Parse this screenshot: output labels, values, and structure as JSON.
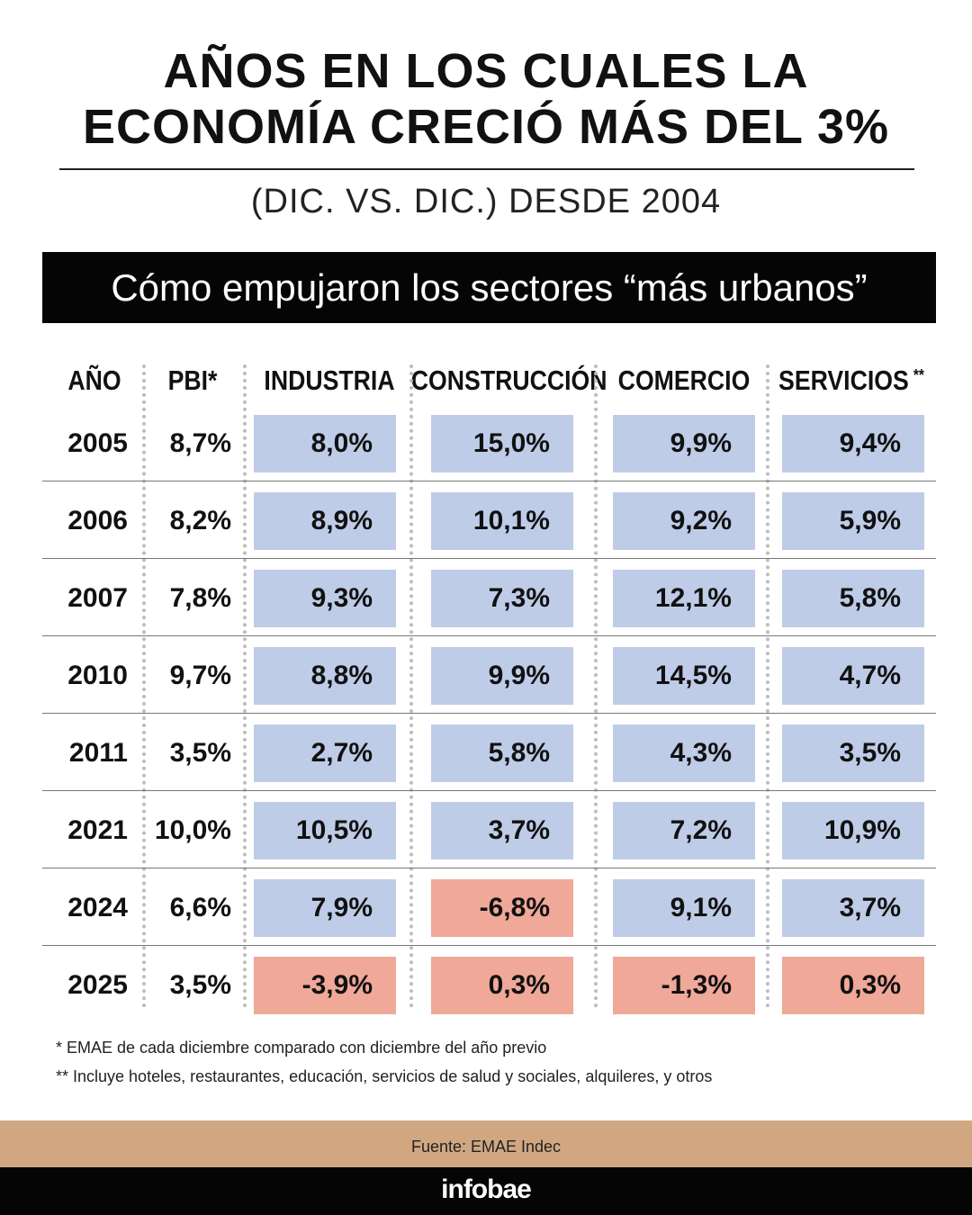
{
  "title": {
    "line1": "AÑOS EN LOS CUALES LA",
    "line2": "ECONOMÍA CRECIÓ MÁS DEL 3%"
  },
  "subtitle": "(DIC. VS. DIC.) DESDE 2004",
  "banner": "Cómo empujaron los sectores “más urbanos”",
  "chart_data": {
    "type": "table",
    "columns": [
      "AÑO",
      "PBI*",
      "INDUSTRIA",
      "CONSTRUCCIÓN",
      "COMERCIO",
      "SERVICIOS"
    ],
    "servicios_mark": "**",
    "rows": [
      {
        "year": "2005",
        "pbi": "8,7%",
        "values": [
          "8,0%",
          "15,0%",
          "9,9%",
          "9,4%"
        ],
        "negative": [
          false,
          false,
          false,
          false
        ]
      },
      {
        "year": "2006",
        "pbi": "8,2%",
        "values": [
          "8,9%",
          "10,1%",
          "9,2%",
          "5,9%"
        ],
        "negative": [
          false,
          false,
          false,
          false
        ]
      },
      {
        "year": "2007",
        "pbi": "7,8%",
        "values": [
          "9,3%",
          "7,3%",
          "12,1%",
          "5,8%"
        ],
        "negative": [
          false,
          false,
          false,
          false
        ]
      },
      {
        "year": "2010",
        "pbi": "9,7%",
        "values": [
          "8,8%",
          "9,9%",
          "14,5%",
          "4,7%"
        ],
        "negative": [
          false,
          false,
          false,
          false
        ]
      },
      {
        "year": "2011",
        "pbi": "3,5%",
        "values": [
          "2,7%",
          "5,8%",
          "4,3%",
          "3,5%"
        ],
        "negative": [
          false,
          false,
          false,
          false
        ]
      },
      {
        "year": "2021",
        "pbi": "10,0%",
        "values": [
          "10,5%",
          "3,7%",
          "7,2%",
          "10,9%"
        ],
        "negative": [
          false,
          false,
          false,
          false
        ]
      },
      {
        "year": "2024",
        "pbi": "6,6%",
        "values": [
          "7,9%",
          "-6,8%",
          "9,1%",
          "3,7%"
        ],
        "negative": [
          false,
          true,
          false,
          false
        ]
      },
      {
        "year": "2025",
        "pbi": "3,5%",
        "values": [
          "-3,9%",
          "0,3%",
          "-1,3%",
          "0,3%"
        ],
        "negative": [
          true,
          true,
          true,
          true
        ]
      }
    ],
    "colors": {
      "positive": "#bfcce8",
      "highlight": "#f0a898"
    }
  },
  "notes": [
    "* EMAE de cada diciembre comparado con diciembre del año previo",
    "** Incluye hoteles, restaurantes, educación, servicios de salud y sociales, alquileres, y otros"
  ],
  "source": "Fuente: EMAE Indec",
  "brand": "infobae"
}
